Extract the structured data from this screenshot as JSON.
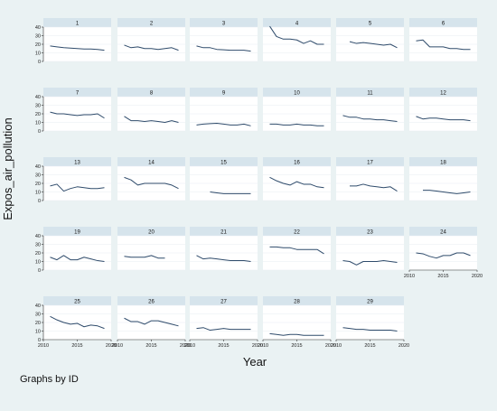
{
  "chart_data": {
    "type": "line",
    "layout": "small-multiples",
    "ylabel": "Expos_air_pollution",
    "xlabel": "Year",
    "note": "Graphs by ID",
    "xlim": [
      2010,
      2020
    ],
    "xticks": [
      2010,
      2015,
      2020
    ],
    "ylim": [
      0,
      40
    ],
    "yticks": [
      0,
      10,
      20,
      30,
      40
    ],
    "grid": true,
    "line_color": "#2f4b6b",
    "panel_header_color": "#d6e4ec",
    "panels": [
      {
        "id": "1",
        "x": [
          2011,
          2012,
          2013,
          2014,
          2015,
          2016,
          2017,
          2018,
          2019
        ],
        "y": [
          18,
          17,
          16,
          15.5,
          15,
          14.5,
          14.5,
          14,
          13
        ]
      },
      {
        "id": "2",
        "x": [
          2011,
          2012,
          2013,
          2014,
          2015,
          2016,
          2017,
          2018,
          2019
        ],
        "y": [
          19,
          16,
          17,
          15,
          15,
          14,
          15,
          16,
          13
        ]
      },
      {
        "id": "3",
        "x": [
          2011,
          2012,
          2013,
          2014,
          2015,
          2016,
          2017,
          2018,
          2019
        ],
        "y": [
          18,
          16,
          16,
          14,
          13.5,
          13,
          13,
          13,
          12
        ]
      },
      {
        "id": "4",
        "x": [
          2011,
          2012,
          2013,
          2014,
          2015,
          2016,
          2017,
          2018,
          2019
        ],
        "y": [
          41,
          29,
          26,
          26,
          25,
          21,
          24,
          20,
          20
        ]
      },
      {
        "id": "5",
        "x": [
          2012,
          2013,
          2014,
          2015,
          2016,
          2017,
          2018,
          2019
        ],
        "y": [
          23,
          21,
          22,
          21,
          20,
          19,
          20,
          16
        ]
      },
      {
        "id": "6",
        "x": [
          2011,
          2012,
          2013,
          2014,
          2015,
          2016,
          2017,
          2018,
          2019
        ],
        "y": [
          24,
          25,
          17,
          17,
          17,
          15,
          15,
          14,
          14
        ]
      },
      {
        "id": "7",
        "x": [
          2011,
          2012,
          2013,
          2014,
          2015,
          2016,
          2017,
          2018,
          2019
        ],
        "y": [
          22,
          20,
          20,
          19,
          18,
          19,
          19,
          20,
          15
        ]
      },
      {
        "id": "8",
        "x": [
          2011,
          2012,
          2013,
          2014,
          2015,
          2016,
          2017,
          2018,
          2019
        ],
        "y": [
          17,
          12,
          12,
          11,
          12,
          11,
          10,
          12,
          10
        ]
      },
      {
        "id": "9",
        "x": [
          2011,
          2012,
          2013,
          2014,
          2015,
          2016,
          2017,
          2018,
          2019
        ],
        "y": [
          7,
          8,
          8.5,
          9,
          8,
          7,
          7,
          8,
          6
        ]
      },
      {
        "id": "10",
        "x": [
          2011,
          2012,
          2013,
          2014,
          2015,
          2016,
          2017,
          2018,
          2019
        ],
        "y": [
          8,
          8,
          7,
          7,
          8,
          7,
          7,
          6,
          6
        ]
      },
      {
        "id": "11",
        "x": [
          2011,
          2012,
          2013,
          2014,
          2015,
          2016,
          2017,
          2018,
          2019
        ],
        "y": [
          18,
          16,
          16,
          14,
          14,
          13,
          13,
          12,
          11
        ]
      },
      {
        "id": "12",
        "x": [
          2011,
          2012,
          2013,
          2014,
          2015,
          2016,
          2017,
          2018,
          2019
        ],
        "y": [
          17,
          14,
          15,
          15,
          14,
          13,
          13,
          13,
          12
        ]
      },
      {
        "id": "13",
        "x": [
          2011,
          2012,
          2013,
          2014,
          2015,
          2016,
          2017,
          2018,
          2019
        ],
        "y": [
          17,
          19,
          11,
          14,
          16,
          15,
          14,
          14,
          15
        ]
      },
      {
        "id": "14",
        "x": [
          2011,
          2012,
          2013,
          2014,
          2015,
          2016,
          2017,
          2018,
          2019
        ],
        "y": [
          27,
          24,
          18,
          20,
          20,
          20,
          20,
          18,
          14
        ]
      },
      {
        "id": "15",
        "x": [
          2013,
          2014,
          2015,
          2016,
          2017,
          2018,
          2019
        ],
        "y": [
          10,
          9,
          8,
          8,
          8,
          8,
          8
        ]
      },
      {
        "id": "16",
        "x": [
          2011,
          2012,
          2013,
          2014,
          2015,
          2016,
          2017,
          2018,
          2019
        ],
        "y": [
          27,
          23,
          20,
          18,
          22,
          19,
          19,
          16,
          15
        ]
      },
      {
        "id": "17",
        "x": [
          2012,
          2013,
          2014,
          2015,
          2016,
          2017,
          2018,
          2019
        ],
        "y": [
          17,
          17,
          19,
          17,
          16,
          15,
          16,
          11
        ]
      },
      {
        "id": "18",
        "x": [
          2012,
          2013,
          2014,
          2015,
          2016,
          2017,
          2018,
          2019
        ],
        "y": [
          12,
          12,
          11,
          10,
          9,
          8,
          9,
          10
        ]
      },
      {
        "id": "19",
        "x": [
          2011,
          2012,
          2013,
          2014,
          2015,
          2016,
          2017,
          2018,
          2019
        ],
        "y": [
          15,
          12,
          17,
          12,
          12,
          15,
          13,
          11,
          10
        ]
      },
      {
        "id": "20",
        "x": [
          2011,
          2012,
          2013,
          2014,
          2015,
          2016,
          2017
        ],
        "y": [
          16,
          15,
          15,
          15,
          17,
          14,
          14
        ]
      },
      {
        "id": "21",
        "x": [
          2011,
          2012,
          2013,
          2014,
          2015,
          2016,
          2017,
          2018,
          2019
        ],
        "y": [
          17,
          13,
          14,
          13,
          12,
          11,
          11,
          11,
          10
        ]
      },
      {
        "id": "22",
        "x": [
          2011,
          2012,
          2013,
          2014,
          2015,
          2016,
          2017,
          2018,
          2019
        ],
        "y": [
          27,
          27,
          26,
          26,
          24,
          24,
          24,
          24,
          19
        ]
      },
      {
        "id": "23",
        "x": [
          2011,
          2012,
          2013,
          2014,
          2015,
          2016,
          2017,
          2018,
          2019
        ],
        "y": [
          11,
          10,
          6,
          10,
          10,
          10,
          11,
          10,
          9
        ]
      },
      {
        "id": "24",
        "x": [
          2011,
          2012,
          2013,
          2014,
          2015,
          2016,
          2017,
          2018,
          2019
        ],
        "y": [
          20,
          19,
          16,
          14,
          17,
          17,
          20,
          20,
          17
        ]
      },
      {
        "id": "25",
        "x": [
          2011,
          2012,
          2013,
          2014,
          2015,
          2016,
          2017,
          2018,
          2019
        ],
        "y": [
          27,
          23,
          20,
          18,
          19,
          15,
          17,
          16,
          13
        ]
      },
      {
        "id": "26",
        "x": [
          2011,
          2012,
          2013,
          2014,
          2015,
          2016,
          2017,
          2018,
          2019
        ],
        "y": [
          25,
          21,
          21,
          18,
          22,
          22,
          20,
          18,
          16
        ]
      },
      {
        "id": "27",
        "x": [
          2011,
          2012,
          2013,
          2014,
          2015,
          2016,
          2017,
          2018,
          2019
        ],
        "y": [
          13,
          14,
          11,
          12,
          13,
          12,
          12,
          12,
          12
        ]
      },
      {
        "id": "28",
        "x": [
          2011,
          2012,
          2013,
          2014,
          2015,
          2016,
          2017,
          2018,
          2019
        ],
        "y": [
          7,
          6,
          5,
          6,
          6,
          5,
          5,
          5,
          5
        ]
      },
      {
        "id": "29",
        "x": [
          2011,
          2012,
          2013,
          2014,
          2015,
          2016,
          2017,
          2018,
          2019
        ],
        "y": [
          14,
          13,
          12,
          12,
          11,
          11,
          11,
          11,
          10
        ]
      }
    ]
  }
}
